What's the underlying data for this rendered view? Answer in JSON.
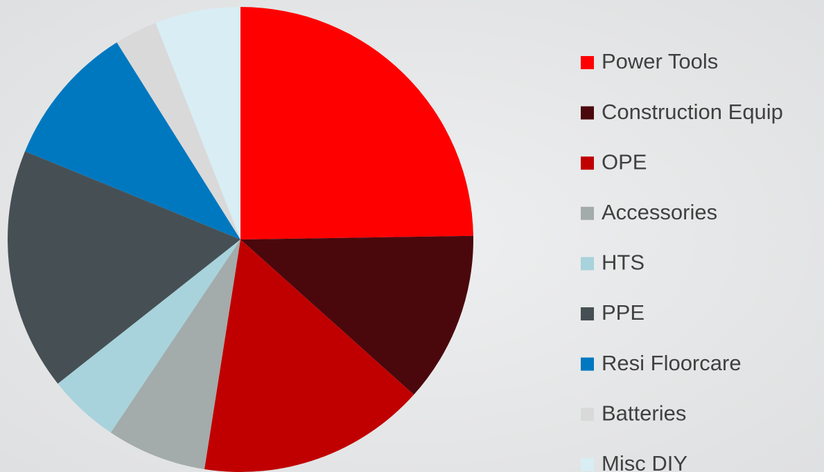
{
  "chart_data": {
    "type": "pie",
    "categories": [
      "Power Tools",
      "Construction Equip",
      "OPE",
      "Accessories",
      "HTS",
      "PPE",
      "Resi Floorcare",
      "Batteries",
      "Misc DIY"
    ],
    "values": [
      25,
      12,
      16,
      7,
      5,
      17,
      10,
      3,
      6
    ],
    "colors": [
      "#ff0000",
      "#4a080d",
      "#c00000",
      "#a3abab",
      "#a8d3dc",
      "#465054",
      "#0078c0",
      "#d9d9d9",
      "#d8edf4"
    ],
    "legend": "right"
  }
}
